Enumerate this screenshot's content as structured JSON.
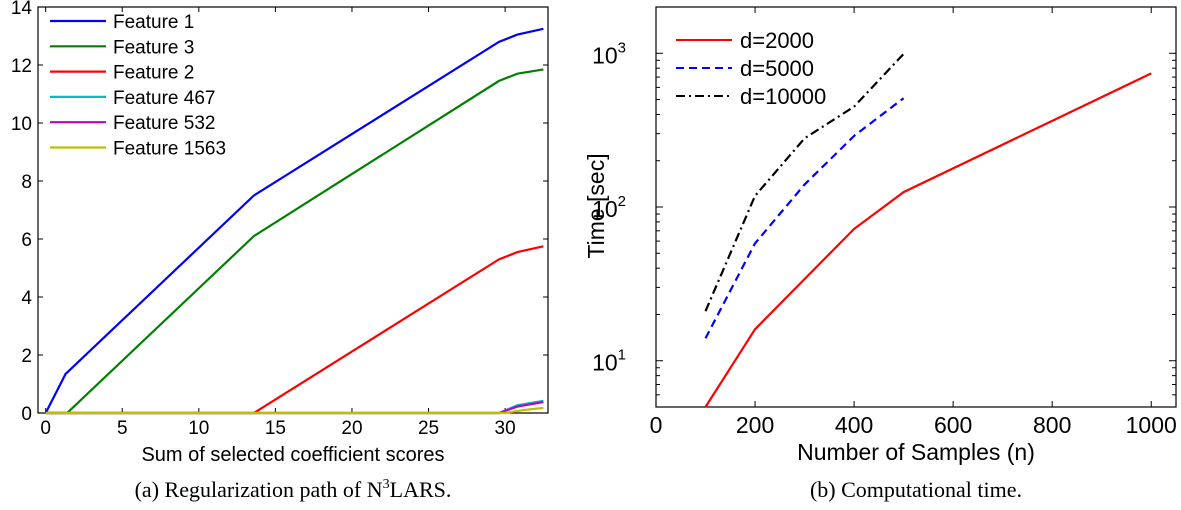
{
  "chart_data": [
    {
      "type": "line",
      "xlabel": "Sum of selected coefficient scores",
      "ylabel": "",
      "xlim": [
        -0.5,
        32.8
      ],
      "ylim": [
        0,
        14
      ],
      "xticks": [
        0,
        5,
        10,
        15,
        20,
        25,
        30
      ],
      "yticks": [
        0,
        2,
        4,
        6,
        8,
        10,
        12,
        14
      ],
      "legend_position": "top-left",
      "series": [
        {
          "name": "Feature 1",
          "color": "#0000ff",
          "dash": "solid",
          "x": [
            0,
            1.3,
            13.6,
            29.6,
            30.8,
            32.5
          ],
          "y": [
            0,
            1.35,
            7.5,
            12.8,
            13.05,
            13.25
          ]
        },
        {
          "name": "Feature 3",
          "color": "#008000",
          "dash": "solid",
          "x": [
            0,
            1.4,
            13.6,
            29.6,
            30.8,
            32.5
          ],
          "y": [
            0,
            0,
            6.1,
            11.45,
            11.7,
            11.85
          ]
        },
        {
          "name": "Feature 2",
          "color": "#ff0000",
          "dash": "solid",
          "x": [
            0,
            13.6,
            29.6,
            30.8,
            32.5
          ],
          "y": [
            0,
            0,
            5.3,
            5.55,
            5.75
          ]
        },
        {
          "name": "Feature 467",
          "color": "#00bfbf",
          "dash": "solid",
          "x": [
            0,
            29.6,
            30.8,
            32.5
          ],
          "y": [
            0,
            0,
            0.27,
            0.42
          ]
        },
        {
          "name": "Feature 532",
          "color": "#bf00bf",
          "dash": "solid",
          "x": [
            0,
            29.6,
            30.8,
            32.5
          ],
          "y": [
            0,
            0,
            0.22,
            0.38
          ]
        },
        {
          "name": "Feature 1563",
          "color": "#bfbf00",
          "dash": "solid",
          "x": [
            0,
            30.0,
            31.2,
            32.5
          ],
          "y": [
            0,
            0,
            0.1,
            0.18
          ]
        }
      ],
      "caption_prefix": "(a) Regularization path of N",
      "caption_sup": "3",
      "caption_suffix": "LARS."
    },
    {
      "type": "line",
      "xlabel": "Number of Samples (n)",
      "ylabel": "Time [sec]",
      "xlim": [
        0,
        1050
      ],
      "ylim": [
        5,
        2000
      ],
      "yscale": "log",
      "xticks": [
        0,
        200,
        400,
        600,
        800,
        1000
      ],
      "ytick_labels": [
        {
          "value": 10,
          "base": "10",
          "exp": "1"
        },
        {
          "value": 100,
          "base": "10",
          "exp": "2"
        },
        {
          "value": 1000,
          "base": "10",
          "exp": "3"
        }
      ],
      "legend_position": "top-left",
      "series": [
        {
          "name": "d=2000",
          "color": "#ff0000",
          "dash": "solid",
          "x": [
            100,
            200,
            300,
            400,
            500,
            1000
          ],
          "y": [
            5,
            16,
            34,
            72,
            125,
            740
          ]
        },
        {
          "name": "d=5000",
          "color": "#0000ff",
          "dash": "dashed",
          "x": [
            100,
            200,
            300,
            400,
            500
          ],
          "y": [
            14,
            58,
            140,
            290,
            510
          ]
        },
        {
          "name": "d=10000",
          "color": "#000000",
          "dash": "dashdot",
          "x": [
            100,
            200,
            300,
            400,
            500
          ],
          "y": [
            21,
            118,
            280,
            450,
            990
          ]
        }
      ],
      "caption": "(b) Computational time."
    }
  ]
}
